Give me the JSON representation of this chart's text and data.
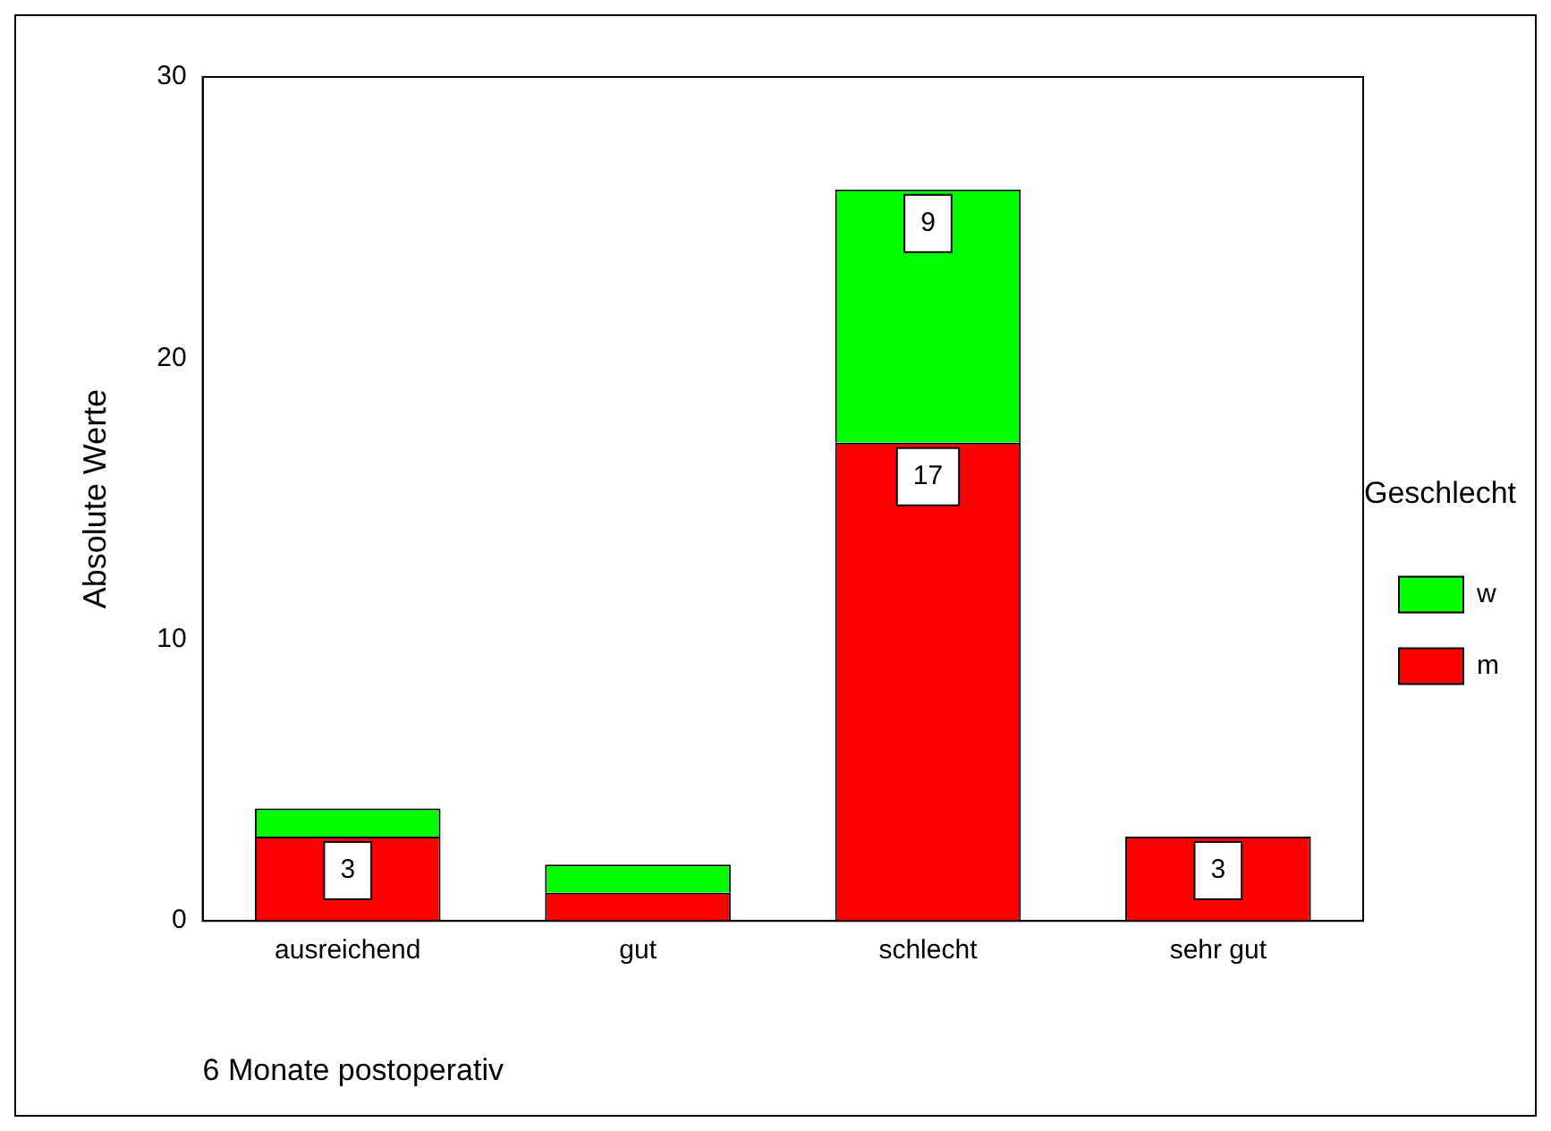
{
  "chart_data": {
    "type": "bar",
    "stacked": true,
    "xlabel": "6 Monate postoperativ",
    "ylabel": "Absolute Werte",
    "legend_title": "Geschlecht",
    "legend": "right",
    "grid": false,
    "categories": [
      "ausreichend",
      "gut",
      "schlecht",
      "sehr gut"
    ],
    "ylim": [
      0,
      30
    ],
    "yticks": [
      0,
      10,
      20,
      30
    ],
    "series": [
      {
        "name": "m",
        "color": "#ff0000",
        "values": [
          3,
          1,
          17,
          3
        ],
        "value_labels": [
          "3",
          null,
          "17",
          "3"
        ]
      },
      {
        "name": "w",
        "color": "#00ff00",
        "values": [
          1,
          1,
          9,
          0
        ],
        "value_labels": [
          null,
          null,
          "9",
          null
        ]
      }
    ]
  }
}
